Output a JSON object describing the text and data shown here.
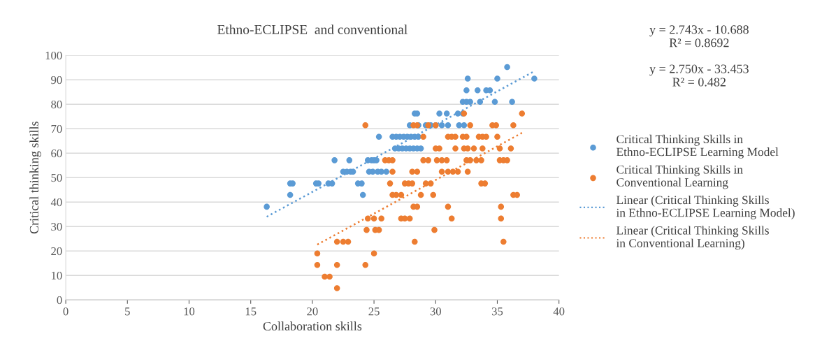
{
  "chart_data": {
    "type": "scatter",
    "title": "Ethno-ECLIPSE  and conventional",
    "xlabel": "Collaboration skills",
    "ylabel": "Critical thinking skills",
    "xlim": [
      0,
      40
    ],
    "xticks": [
      0,
      5,
      10,
      15,
      20,
      25,
      30,
      35,
      40
    ],
    "ylim": [
      0,
      100
    ],
    "yticks": [
      0,
      10,
      20,
      30,
      40,
      50,
      60,
      70,
      80,
      90,
      100
    ],
    "grid": "y",
    "legend": "right",
    "annotations": [
      "y = 2.743x - 10.688\nR² = 0.8692",
      "y = 2.750x - 33.453\nR² = 0.482"
    ],
    "series": [
      {
        "name": "Critical Thinking Skills in Ethno-ECLIPSE Learning Model",
        "color": "#5b9bd5",
        "marker": "circle",
        "x": [
          16.3,
          18.2,
          18.4,
          18.2,
          20.3,
          20.5,
          21.3,
          21.6,
          21.8,
          22.5,
          22.8,
          23.1,
          23.3,
          23.0,
          23.7,
          24.0,
          24.1,
          24.5,
          24.8,
          25.0,
          25.2,
          24.6,
          24.9,
          25.3,
          25.6,
          26.0,
          25.4,
          26.5,
          26.8,
          27.1,
          27.4,
          27.7,
          28.0,
          28.3,
          28.6,
          26.7,
          27.0,
          27.3,
          27.6,
          27.9,
          28.2,
          28.5,
          28.8,
          27.9,
          28.3,
          28.6,
          29.2,
          29.6,
          30.0,
          30.5,
          31.0,
          31.9,
          32.3,
          28.3,
          28.5,
          30.3,
          30.9,
          31.8,
          32.2,
          32.2,
          32.5,
          32.8,
          33.6,
          34.8,
          36.2,
          32.5,
          33.4,
          34.1,
          34.4,
          32.6,
          35.0,
          38.0,
          35.8
        ],
        "values": [
          38.1,
          47.6,
          47.6,
          42.9,
          47.6,
          47.6,
          47.6,
          47.6,
          57.1,
          52.4,
          52.4,
          52.4,
          52.4,
          57.1,
          47.6,
          47.6,
          42.9,
          57.1,
          57.1,
          57.1,
          57.1,
          52.4,
          52.4,
          52.4,
          52.4,
          52.4,
          66.7,
          66.7,
          66.7,
          66.7,
          66.7,
          66.7,
          66.7,
          66.7,
          66.7,
          61.9,
          61.9,
          61.9,
          61.9,
          61.9,
          61.9,
          61.9,
          61.9,
          71.4,
          null,
          71.4,
          71.4,
          71.4,
          71.4,
          71.4,
          71.4,
          71.4,
          71.4,
          76.2,
          76.2,
          76.2,
          76.2,
          76.2,
          76.2,
          81.0,
          81.0,
          81.0,
          81.0,
          81.0,
          81.0,
          85.7,
          85.7,
          85.7,
          85.7,
          90.5,
          90.5,
          90.5,
          95.2
        ]
      },
      {
        "name": "Critical Thinking Skills in Conventional Learning",
        "color": "#ed7d31",
        "marker": "circle",
        "x": [
          24.3,
          32.3,
          37.0,
          28.2,
          28.5,
          29.4,
          30.0,
          32.8,
          34.6,
          34.9,
          36.3,
          29.0,
          31.0,
          31.3,
          31.6,
          32.2,
          32.5,
          33.5,
          33.8,
          34.1,
          35.0,
          30.0,
          30.3,
          31.6,
          32.3,
          32.6,
          33.1,
          33.8,
          35.2,
          36.1,
          25.9,
          26.2,
          26.5,
          29.0,
          29.4,
          30.1,
          30.5,
          30.9,
          32.5,
          32.8,
          33.3,
          33.7,
          35.2,
          35.5,
          35.8,
          26.5,
          28.1,
          28.5,
          30.5,
          31.0,
          31.4,
          31.8,
          32.6,
          26.3,
          27.5,
          27.8,
          28.1,
          29.2,
          29.6,
          33.7,
          34.0,
          26.5,
          26.8,
          27.2,
          28.8,
          29.8,
          36.3,
          36.6,
          28.2,
          28.5,
          31.0,
          35.3,
          24.5,
          25.0,
          25.6,
          27.2,
          27.5,
          27.9,
          31.3,
          35.3,
          24.4,
          25.1,
          25.4,
          29.9,
          22.0,
          22.5,
          22.9,
          28.3,
          35.5,
          20.4,
          25.0,
          20.4,
          22.0,
          24.3,
          21.0,
          21.4,
          22.0
        ],
        "values": [
          71.4,
          76.2,
          76.2,
          71.4,
          71.4,
          71.4,
          71.4,
          71.4,
          71.4,
          71.4,
          71.4,
          66.7,
          66.7,
          66.7,
          66.7,
          66.7,
          66.7,
          66.7,
          66.7,
          66.7,
          66.7,
          61.9,
          61.9,
          61.9,
          61.9,
          61.9,
          61.9,
          61.9,
          61.9,
          61.9,
          57.1,
          57.1,
          57.1,
          57.1,
          57.1,
          57.1,
          57.1,
          57.1,
          57.1,
          57.1,
          57.1,
          57.1,
          57.1,
          57.1,
          57.1,
          52.4,
          52.4,
          52.4,
          52.4,
          52.4,
          52.4,
          52.4,
          52.4,
          47.6,
          47.6,
          47.6,
          47.6,
          47.6,
          47.6,
          47.6,
          47.6,
          42.9,
          42.9,
          42.9,
          42.9,
          42.9,
          42.9,
          42.9,
          38.1,
          38.1,
          38.1,
          38.1,
          33.3,
          33.3,
          33.3,
          33.3,
          33.3,
          33.3,
          33.3,
          33.3,
          28.6,
          28.6,
          28.6,
          28.6,
          23.8,
          23.8,
          23.8,
          23.8,
          23.8,
          19.0,
          19.0,
          14.3,
          14.3,
          14.3,
          9.5,
          9.5,
          4.8
        ]
      },
      {
        "name": "Linear (Critical Thinking Skills in Ethno-ECLIPSE Learning Model)",
        "color": "#5b9bd5",
        "type": "line",
        "marker": "none",
        "line_style": "dotted",
        "x": [
          16.3,
          38.0
        ],
        "values": [
          34.0,
          93.5
        ]
      },
      {
        "name": "Linear (Critical Thinking Skills in Conventional Learning)",
        "color": "#ed7d31",
        "type": "line",
        "marker": "none",
        "line_style": "dotted",
        "x": [
          20.4,
          37.0
        ],
        "values": [
          22.6,
          68.3
        ]
      }
    ]
  }
}
